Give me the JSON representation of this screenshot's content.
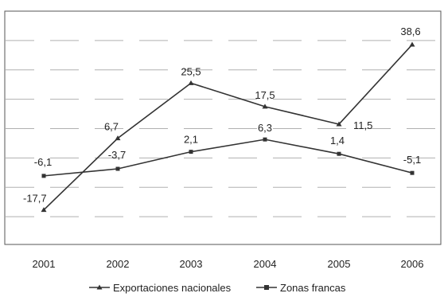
{
  "chart_data": {
    "type": "line",
    "categories": [
      "2001",
      "2002",
      "2003",
      "2004",
      "2005",
      "2006"
    ],
    "series": [
      {
        "name": "Exportaciones nacionales",
        "values": [
          -17.7,
          6.7,
          25.5,
          17.5,
          11.5,
          38.6
        ],
        "marker": "triangle"
      },
      {
        "name": "Zonas francas",
        "values": [
          -6.1,
          -3.7,
          2.1,
          6.3,
          1.4,
          -5.1
        ],
        "marker": "square"
      }
    ],
    "data_labels": {
      "Exportaciones nacionales": [
        "-17,7",
        "6,7",
        "25,5",
        "17,5",
        "11,5",
        "38,6"
      ],
      "Zonas francas": [
        "-6,1",
        "-3,7",
        "2,1",
        "6,3",
        "1,4",
        "-5,1"
      ]
    },
    "ylim": [
      -30,
      50
    ],
    "grid": true,
    "legend_position": "bottom",
    "colors": {
      "line": "#333333",
      "grid": "#b0b0b0",
      "frame": "#555555"
    }
  }
}
